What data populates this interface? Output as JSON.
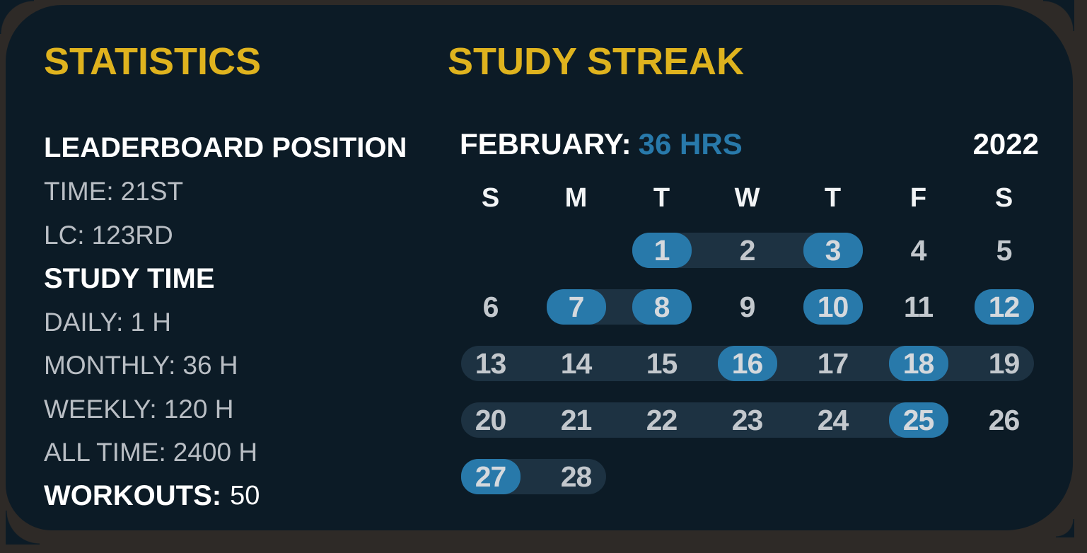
{
  "colors": {
    "background_frame": "#2e2a27",
    "card_background": "#0c1b26",
    "accent_yellow": "#dfb31e",
    "accent_blue": "#2879aa",
    "streak_pill": "#1d3242",
    "text_primary": "#ffffff",
    "text_muted": "#b9bec4",
    "day_number": "#c3c8cd"
  },
  "statistics": {
    "title": "STATISTICS",
    "items": [
      {
        "label": "LEADERBOARD POSITION",
        "value": "",
        "style": "heading"
      },
      {
        "label": "TIME:",
        "value": "21ST",
        "style": "muted"
      },
      {
        "label": "LC:",
        "value": "123RD",
        "style": "muted"
      },
      {
        "label": "STUDY TIME",
        "value": "",
        "style": "heading"
      },
      {
        "label": "DAILY:",
        "value": "1 H",
        "style": "muted"
      },
      {
        "label": "MONTHLY:",
        "value": "36 H",
        "style": "muted"
      },
      {
        "label": "WEEKLY:",
        "value": "120 H",
        "style": "muted"
      },
      {
        "label": "ALL TIME:",
        "value": "2400 H",
        "style": "muted"
      },
      {
        "label": "WORKOUTS:",
        "value": "50",
        "style": "heading-value"
      }
    ]
  },
  "study_streak": {
    "title": "STUDY STREAK",
    "month_label": "FEBRUARY:",
    "month_total": "36 HRS",
    "year": "2022",
    "day_headers": [
      "S",
      "M",
      "T",
      "W",
      "T",
      "F",
      "S"
    ],
    "weeks": [
      {
        "pill": [
          2,
          4
        ],
        "days": [
          null,
          null,
          {
            "n": "1",
            "studied": true
          },
          {
            "n": "2"
          },
          {
            "n": "3",
            "studied": true
          },
          {
            "n": "4"
          },
          {
            "n": "5"
          }
        ]
      },
      {
        "pill": [
          1,
          2
        ],
        "days": [
          {
            "n": "6"
          },
          {
            "n": "7",
            "studied": true
          },
          {
            "n": "8",
            "studied": true
          },
          {
            "n": "9"
          },
          {
            "n": "10",
            "studied": true
          },
          {
            "n": "11"
          },
          {
            "n": "12",
            "studied": true
          }
        ]
      },
      {
        "pill": [
          0,
          6
        ],
        "days": [
          {
            "n": "13"
          },
          {
            "n": "14"
          },
          {
            "n": "15"
          },
          {
            "n": "16",
            "studied": true
          },
          {
            "n": "17"
          },
          {
            "n": "18",
            "studied": true
          },
          {
            "n": "19"
          }
        ]
      },
      {
        "pill": [
          0,
          5
        ],
        "days": [
          {
            "n": "20"
          },
          {
            "n": "21"
          },
          {
            "n": "22"
          },
          {
            "n": "23"
          },
          {
            "n": "24"
          },
          {
            "n": "25",
            "studied": true
          },
          {
            "n": "26"
          }
        ]
      },
      {
        "pill": [
          0,
          1
        ],
        "days": [
          {
            "n": "27",
            "studied": true
          },
          {
            "n": "28"
          },
          null,
          null,
          null,
          null,
          null
        ]
      }
    ]
  }
}
